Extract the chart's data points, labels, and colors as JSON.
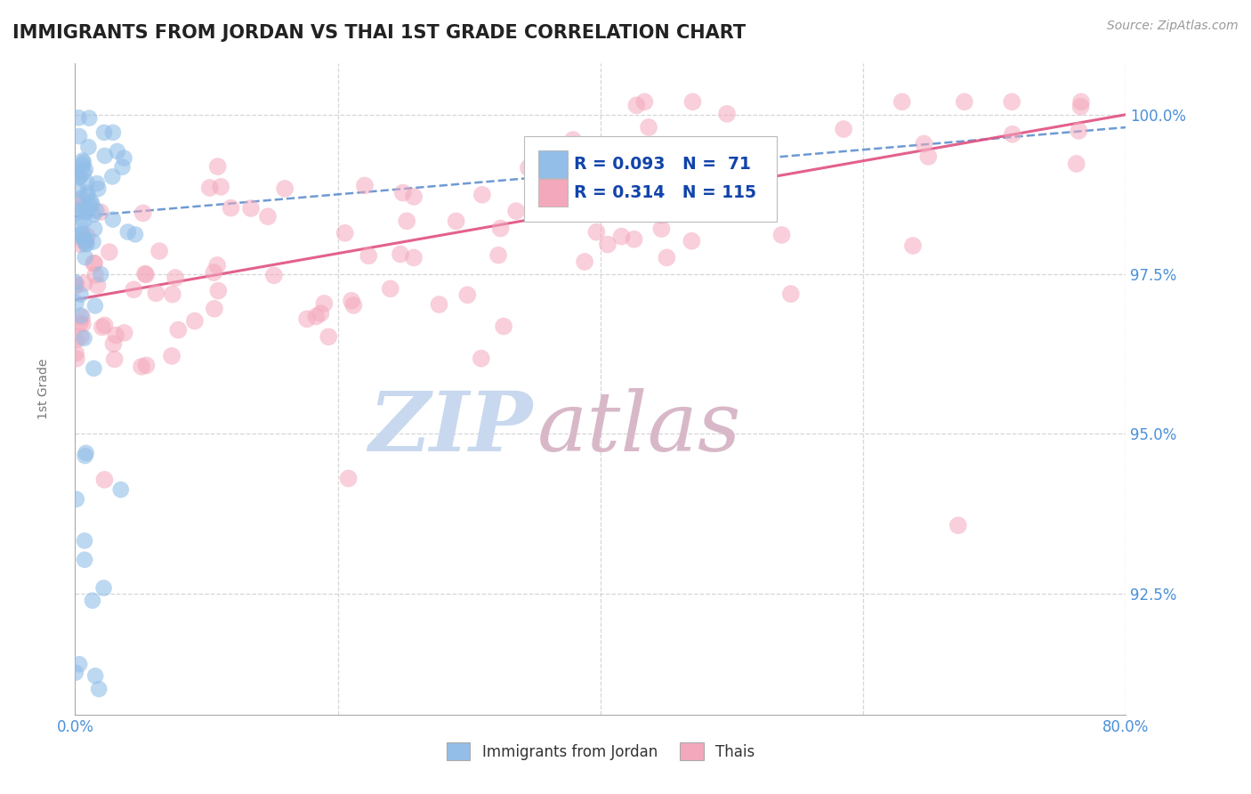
{
  "title": "IMMIGRANTS FROM JORDAN VS THAI 1ST GRADE CORRELATION CHART",
  "source_text": "Source: ZipAtlas.com",
  "ylabel_text": "1st Grade",
  "xmin": 0.0,
  "xmax": 0.8,
  "ymin": 0.906,
  "ymax": 1.008,
  "yticks": [
    1.0,
    0.975,
    0.95,
    0.925
  ],
  "ytick_labels": [
    "100.0%",
    "97.5%",
    "95.0%",
    "92.5%"
  ],
  "xticks": [
    0.0,
    0.2,
    0.4,
    0.6,
    0.8
  ],
  "xtick_labels": [
    "0.0%",
    "",
    "",
    "",
    "80.0%"
  ],
  "jordan_color": "#92BEE8",
  "thai_color": "#F4A8BC",
  "jordan_trendline_color": "#5588CC",
  "thai_trendline_color": "#E05080",
  "jordan_R": 0.093,
  "jordan_N": 71,
  "thai_R": 0.314,
  "thai_N": 115,
  "legend_jordan_label": "Immigrants from Jordan",
  "legend_thai_label": "Thais",
  "watermark": "ZIPatlas",
  "watermark_zip_color": "#C8D8EE",
  "watermark_atlas_color": "#D8B8C8",
  "grid_color": "#CCCCCC",
  "title_color": "#222222",
  "axis_label_color": "#777777",
  "tick_label_color": "#4a90d9",
  "title_fontsize": 15,
  "tick_fontsize": 12
}
